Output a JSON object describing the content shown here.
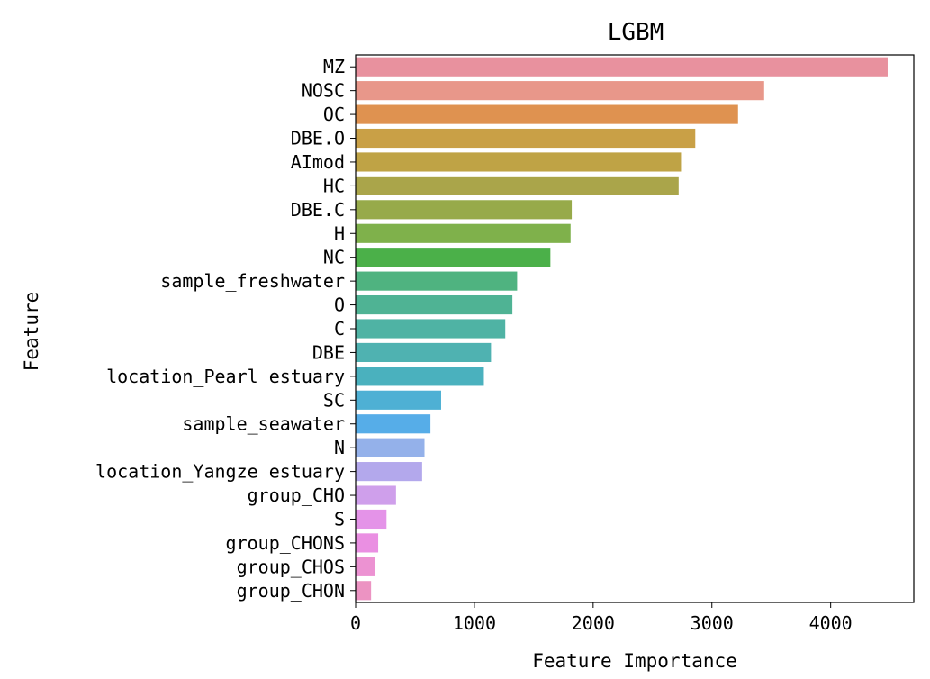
{
  "chart_data": {
    "type": "bar",
    "orientation": "horizontal",
    "title": "LGBM",
    "xlabel": "Feature Importance",
    "ylabel": "Feature",
    "xlim": [
      0,
      4700
    ],
    "xticks": [
      0,
      1000,
      2000,
      3000,
      4000
    ],
    "grid": false,
    "categories": [
      "MZ",
      "NOSC",
      "OC",
      "DBE.O",
      "AImod",
      "HC",
      "DBE.C",
      "H",
      "NC",
      "sample_freshwater",
      "O",
      "C",
      "DBE",
      "location_Pearl estuary",
      "SC",
      "sample_seawater",
      "N",
      "location_Yangze estuary",
      "group_CHO",
      "S",
      "group_CHONS",
      "group_CHOS",
      "group_CHON"
    ],
    "values": [
      4480,
      3440,
      3220,
      2860,
      2740,
      2720,
      1820,
      1810,
      1640,
      1360,
      1320,
      1260,
      1140,
      1080,
      720,
      630,
      580,
      560,
      340,
      260,
      190,
      160,
      130
    ],
    "colors": [
      "#e8919e",
      "#e8978a",
      "#df9250",
      "#c9a046",
      "#bfa345",
      "#aaa54a",
      "#97aa4a",
      "#7fb14b",
      "#4bb049",
      "#4fb380",
      "#4fb394",
      "#4fb3a4",
      "#4fb2b1",
      "#4ab1be",
      "#4eb0d4",
      "#56ade8",
      "#94b1ea",
      "#b3a8ec",
      "#cf9feb",
      "#e493e8",
      "#ea8fe2",
      "#ec92d2",
      "#ec93c2"
    ]
  }
}
